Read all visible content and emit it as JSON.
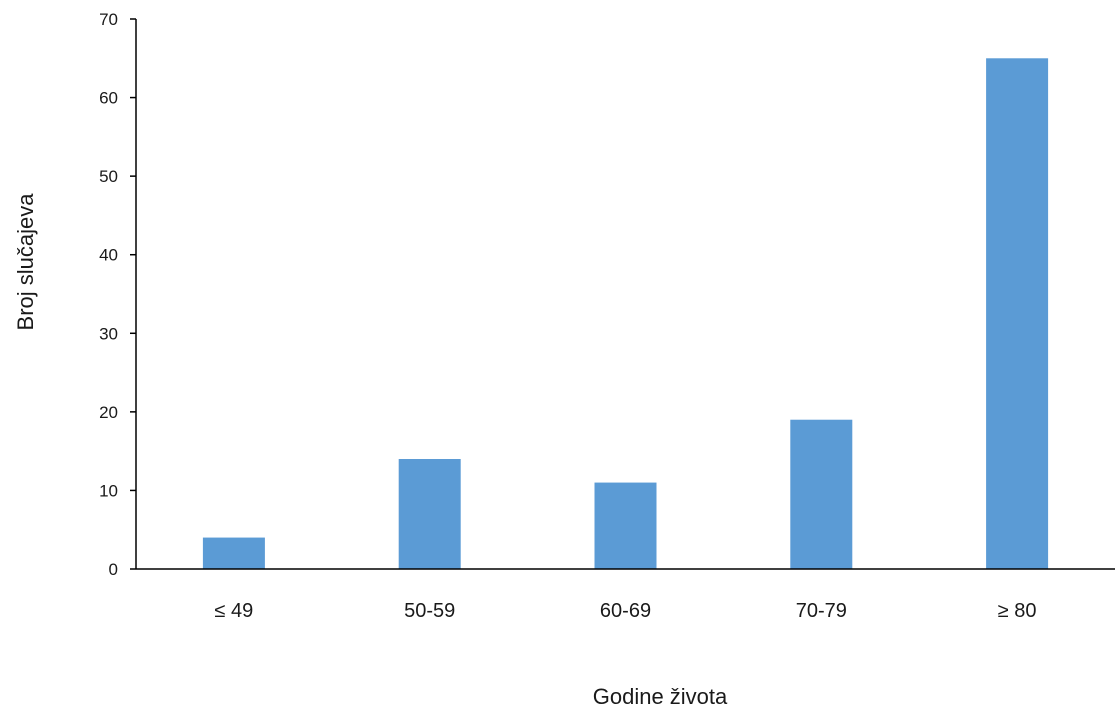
{
  "chart_data": {
    "type": "bar",
    "categories": [
      "≤ 49",
      "50-59",
      "60-69",
      "70-79",
      "≥ 80"
    ],
    "values": [
      4,
      14,
      11,
      19,
      65
    ],
    "xlabel": "Godine života",
    "ylabel": "Broj slučajeva",
    "ylim": [
      0,
      70
    ],
    "yticks": [
      0,
      10,
      20,
      30,
      40,
      50,
      60,
      70
    ],
    "grid": false,
    "legend": "none",
    "bar_color": "#5b9bd5",
    "axis_color": "#000000"
  }
}
